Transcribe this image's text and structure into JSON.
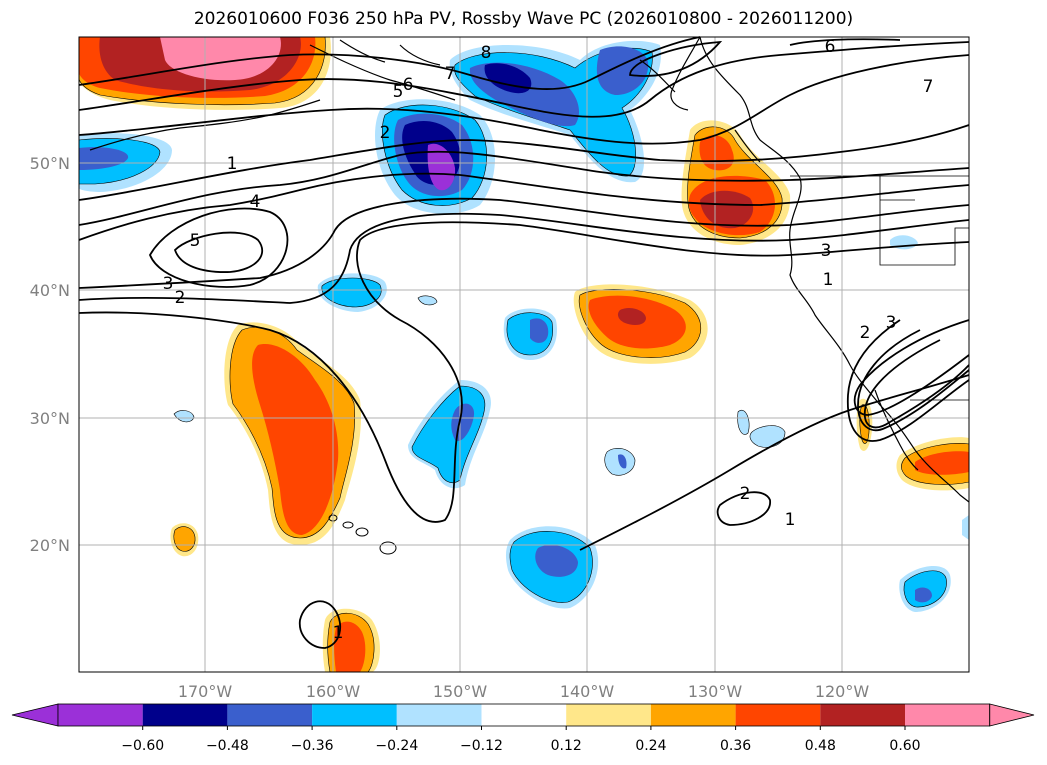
{
  "title": "2026010600 F036 250 hPa PV, Rossby Wave PC (2026010800 - 2026011200)",
  "colors": {
    "bins": [
      "#9b30d8",
      "#00008b",
      "#3a5fcd",
      "#00bfff",
      "#b0e2ff",
      "#ffffff",
      "#ffe78a",
      "#ffa500",
      "#ff4500",
      "#b22222",
      "#ff88aa"
    ]
  },
  "axes": {
    "lat_labels": [
      "50°N",
      "40°N",
      "30°N",
      "20°N"
    ],
    "lon_labels": [
      "170°W",
      "160°W",
      "150°W",
      "140°W",
      "130°W",
      "120°W"
    ]
  },
  "colorbar": {
    "ticks": [
      "−0.60",
      "−0.48",
      "−0.36",
      "−0.24",
      "−0.12",
      "0.12",
      "0.24",
      "0.36",
      "0.48",
      "0.60"
    ]
  },
  "contour_labels": [
    "1",
    "2",
    "3",
    "4",
    "5",
    "6",
    "7",
    "8"
  ]
}
